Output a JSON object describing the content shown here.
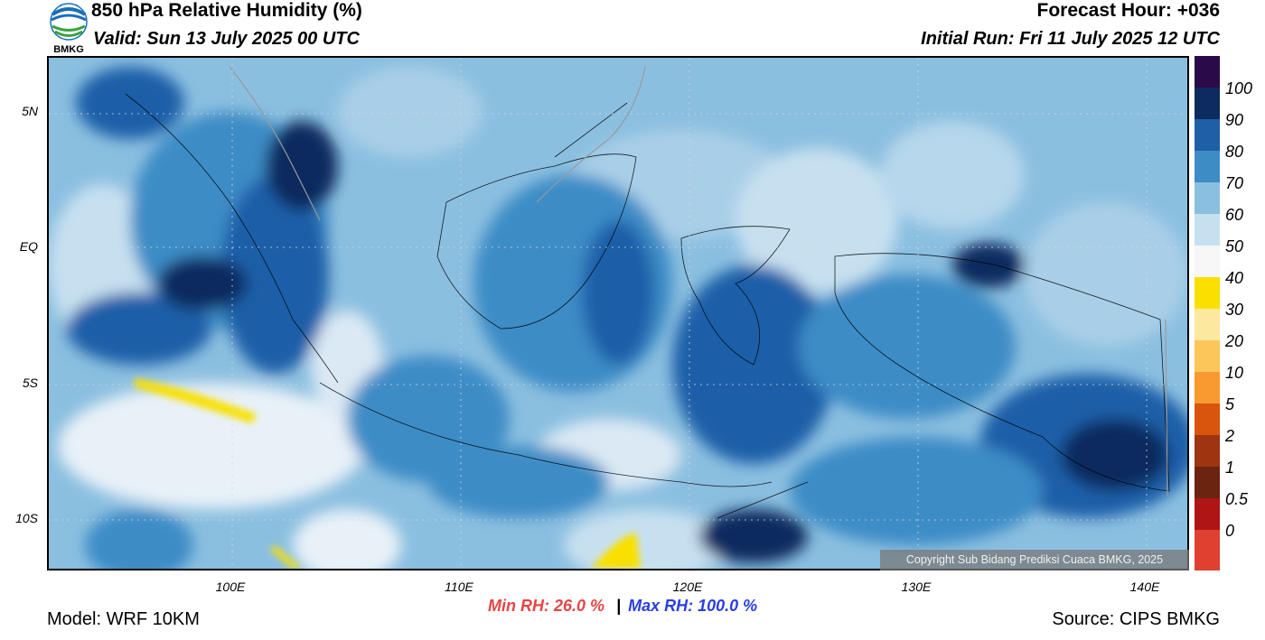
{
  "header": {
    "title": "850 hPa Relative Humidity (%)",
    "valid": "Valid: Sun 13 July 2025 00 UTC",
    "forecast_hour": "Forecast Hour: +036",
    "initial_run": "Initial Run: Fri 11 July 2025 12 UTC",
    "logo_text": "BMKG"
  },
  "axes": {
    "lat_labels": [
      "5N",
      "EQ",
      "5S",
      "10S"
    ],
    "lon_labels": [
      "100E",
      "110E",
      "120E",
      "130E",
      "140E"
    ]
  },
  "colorbar": {
    "labels": [
      "100",
      "90",
      "80",
      "70",
      "60",
      "50",
      "40",
      "30",
      "20",
      "10",
      "5",
      "2",
      "1",
      "0.5",
      "0"
    ],
    "colors": [
      "#2b0a4a",
      "#0d2b5e",
      "#1f5fa8",
      "#3d8cc6",
      "#8bbfe0",
      "#c7e0f0",
      "#f7f7f7",
      "#f9e000",
      "#fde8a0",
      "#fcc65a",
      "#f99a30",
      "#d9540c",
      "#9c3510",
      "#6b2410",
      "#b01515",
      "#e04030"
    ]
  },
  "stats": {
    "min_label": "Min RH:  26.0 %",
    "separator": "|",
    "max_label": "Max RH: 100.0 %",
    "min_color": "#e64545",
    "max_color": "#2a3ee0"
  },
  "footer": {
    "model": "Model: WRF 10KM",
    "source": "Source: CIPS BMKG",
    "copyright": "Copyright Sub Bidang Prediksi Cuaca BMKG, 2025"
  }
}
